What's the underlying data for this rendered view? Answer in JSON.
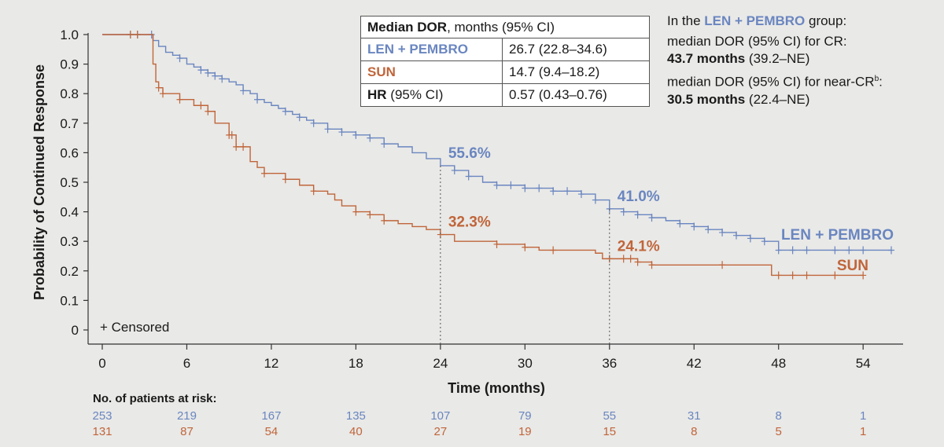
{
  "chart_data": {
    "type": "line",
    "xlabel": "Time (months)",
    "ylabel": "Probability of Continued Response",
    "xlim": [
      0,
      56
    ],
    "ylim": [
      0,
      1.0
    ],
    "xticks": [
      "0",
      "6",
      "12",
      "18",
      "24",
      "30",
      "36",
      "42",
      "48",
      "54"
    ],
    "yticks": [
      "0",
      "0.1",
      "0.2",
      "0.3",
      "0.4",
      "0.5",
      "0.6",
      "0.7",
      "0.8",
      "0.9",
      "1.0"
    ],
    "censor_legend": "+ Censored",
    "series": [
      {
        "name": "LEN + PEMBRO",
        "color": "#6a86c0",
        "x": [
          0,
          3.3,
          3.6,
          4,
          4.5,
          5,
          5.5,
          6,
          6.5,
          7,
          7.5,
          8,
          8.5,
          9,
          9.5,
          10,
          10.5,
          11,
          11.5,
          12,
          12.5,
          13,
          13.5,
          14,
          14.5,
          15,
          16,
          17,
          18,
          19,
          20,
          21,
          22,
          23,
          24,
          25,
          26,
          27,
          28,
          30,
          32,
          34,
          35,
          36,
          37,
          38,
          39,
          40,
          41,
          42,
          43,
          44,
          45,
          46,
          47,
          48,
          56
        ],
        "y": [
          1.0,
          1.0,
          0.98,
          0.96,
          0.94,
          0.93,
          0.92,
          0.9,
          0.89,
          0.88,
          0.87,
          0.86,
          0.85,
          0.84,
          0.83,
          0.81,
          0.8,
          0.78,
          0.77,
          0.76,
          0.75,
          0.74,
          0.73,
          0.72,
          0.71,
          0.7,
          0.68,
          0.67,
          0.66,
          0.65,
          0.63,
          0.62,
          0.6,
          0.58,
          0.556,
          0.54,
          0.52,
          0.5,
          0.49,
          0.48,
          0.47,
          0.46,
          0.44,
          0.41,
          0.4,
          0.39,
          0.38,
          0.37,
          0.36,
          0.35,
          0.34,
          0.33,
          0.32,
          0.31,
          0.3,
          0.27,
          0.27
        ],
        "censored_x": [
          2,
          2.5,
          3.5,
          5.5,
          7,
          7.5,
          8,
          8.5,
          10,
          11,
          13,
          14,
          15,
          16,
          17,
          18,
          19,
          20,
          25,
          26,
          28,
          29,
          30,
          31,
          32,
          33,
          34,
          35,
          36,
          37,
          38,
          39,
          41,
          42,
          43,
          44,
          45,
          46,
          47,
          48,
          49,
          50,
          52,
          53,
          54,
          56
        ]
      },
      {
        "name": "SUN",
        "color": "#c0653a",
        "x": [
          0,
          3.6,
          3.8,
          4,
          4.3,
          5.5,
          6.5,
          7.5,
          8,
          9,
          9.5,
          10.5,
          11,
          11.5,
          12,
          13,
          14,
          15,
          16,
          16.5,
          17,
          18,
          19,
          20,
          21,
          22,
          23,
          24,
          25,
          28,
          30,
          31,
          35,
          35.5,
          38,
          39,
          40,
          47.5,
          49,
          54
        ],
        "y": [
          1.0,
          0.9,
          0.84,
          0.82,
          0.8,
          0.78,
          0.76,
          0.74,
          0.7,
          0.66,
          0.62,
          0.57,
          0.55,
          0.53,
          0.53,
          0.51,
          0.49,
          0.47,
          0.46,
          0.44,
          0.42,
          0.4,
          0.39,
          0.37,
          0.36,
          0.35,
          0.34,
          0.323,
          0.3,
          0.29,
          0.28,
          0.27,
          0.26,
          0.241,
          0.23,
          0.22,
          0.22,
          0.185,
          0.185,
          0.185
        ],
        "censored_x": [
          2,
          2.5,
          4,
          4.3,
          5.5,
          7,
          7.5,
          9,
          9.2,
          9.5,
          10,
          11.5,
          13,
          15,
          18,
          19,
          20,
          24,
          28,
          30,
          32,
          36,
          37,
          37.5,
          38,
          39,
          44,
          48,
          49,
          50,
          52,
          54
        ]
      }
    ],
    "annotations": [
      {
        "x": 24,
        "y": 0.556,
        "label": "55.6%",
        "series": "LEN + PEMBRO"
      },
      {
        "x": 24,
        "y": 0.323,
        "label": "32.3%",
        "series": "SUN"
      },
      {
        "x": 36,
        "y": 0.41,
        "label": "41.0%",
        "series": "LEN + PEMBRO"
      },
      {
        "x": 36,
        "y": 0.241,
        "label": "24.1%",
        "series": "SUN"
      }
    ],
    "at_risk": {
      "title": "No. of patients at risk:",
      "times": [
        0,
        6,
        12,
        18,
        24,
        30,
        36,
        42,
        48,
        54
      ],
      "rows": [
        {
          "series": "LEN + PEMBRO",
          "values": [
            "253",
            "219",
            "167",
            "135",
            "107",
            "79",
            "55",
            "31",
            "8",
            "1"
          ]
        },
        {
          "series": "SUN",
          "values": [
            "131",
            "87",
            "54",
            "40",
            "27",
            "19",
            "15",
            "8",
            "5",
            "1"
          ]
        }
      ]
    },
    "grid": false
  },
  "stats_table": {
    "header_bold": "Median DOR",
    "header_rest": ", months (95% CI)",
    "rows": [
      {
        "label": "LEN + PEMBRO",
        "value": "26.7 (22.8–34.6)"
      },
      {
        "label": "SUN",
        "value": "14.7 (9.4–18.2)"
      }
    ],
    "hr_bold": "HR",
    "hr_rest": " (95% CI)",
    "hr_value": "0.57 (0.43–0.76)"
  },
  "note": {
    "intro_pre": "In the ",
    "intro_group": "LEN + PEMBRO",
    "intro_post": " group:",
    "cr_label": "median DOR (95% CI) for CR:",
    "cr_value": "43.7 months",
    "cr_ci": " (39.2–NE)",
    "ncr_label": "median DOR (95% CI) for near-CR",
    "ncr_sup": "b",
    "ncr_colon": ":",
    "ncr_value": "30.5 months",
    "ncr_ci": " (22.4–NE)"
  }
}
